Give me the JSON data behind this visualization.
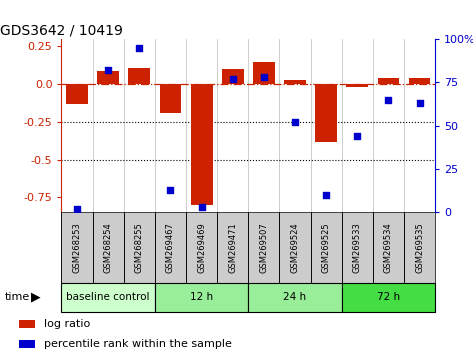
{
  "title": "GDS3642 / 10419",
  "samples": [
    "GSM268253",
    "GSM268254",
    "GSM268255",
    "GSM269467",
    "GSM269469",
    "GSM269471",
    "GSM269507",
    "GSM269524",
    "GSM269525",
    "GSM269533",
    "GSM269534",
    "GSM269535"
  ],
  "log_ratio": [
    -0.13,
    0.09,
    0.11,
    -0.19,
    -0.8,
    0.1,
    0.15,
    0.03,
    -0.38,
    -0.02,
    0.04,
    0.04
  ],
  "percentile_rank": [
    2,
    82,
    95,
    13,
    3,
    77,
    78,
    52,
    10,
    44,
    65,
    63
  ],
  "groups": [
    {
      "label": "baseline control",
      "start": 0,
      "end": 3,
      "color": "#ccffcc"
    },
    {
      "label": "12 h",
      "start": 3,
      "end": 6,
      "color": "#99ee99"
    },
    {
      "label": "24 h",
      "start": 6,
      "end": 9,
      "color": "#99ee99"
    },
    {
      "label": "72 h",
      "start": 9,
      "end": 12,
      "color": "#44dd44"
    }
  ],
  "ylim_left": [
    -0.85,
    0.3
  ],
  "ylim_right": [
    0,
    100
  ],
  "yticks_left": [
    0.25,
    0.0,
    -0.25,
    -0.5,
    -0.75
  ],
  "yticks_right": [
    100,
    75,
    50,
    25,
    0
  ],
  "bar_color": "#cc2200",
  "dot_color": "#0000cc",
  "hline_y": 0.0,
  "dotted_lines": [
    -0.25,
    -0.5
  ],
  "background_color": "#ffffff",
  "plot_bg": "#ffffff",
  "label_bg": "#cccccc",
  "label_fontsize": 6.0,
  "title_fontsize": 10,
  "tick_fontsize": 8
}
